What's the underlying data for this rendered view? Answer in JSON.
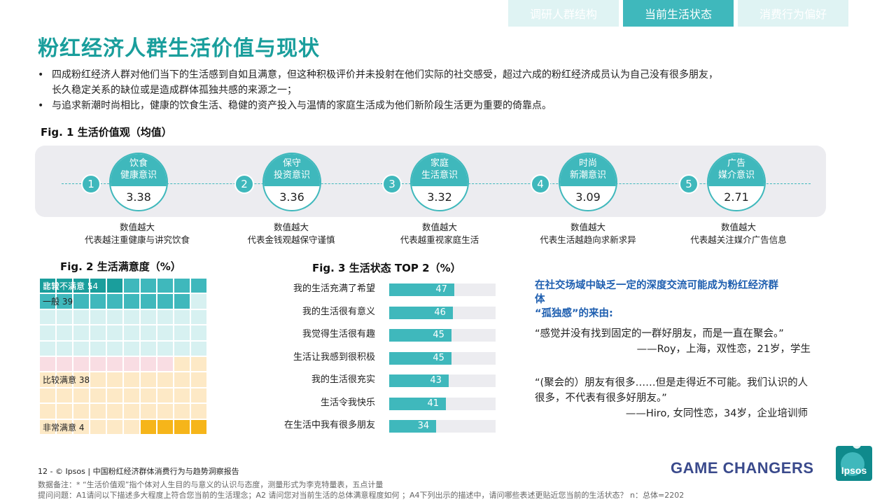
{
  "tabs": [
    {
      "label": "调研人群结构",
      "active": false
    },
    {
      "label": "当前生活状态",
      "active": true
    },
    {
      "label": "消费行为偏好",
      "active": false
    }
  ],
  "page_title": "粉红经济人群生活价值与现状",
  "bullets": [
    {
      "lines": [
        "四成粉红经济人群对他们当下的生活感到自如且满意，但这种积极评价并未投射在他们实际的社交感受，超过六成的粉红经济成员认为自己没有很多朋友，",
        "长久稳定关系的缺位或是造成群体孤独共感的来源之一；"
      ]
    },
    {
      "lines": [
        "与追求新潮时尚相比，健康的饮食生活、稳健的资产投入与温情的家庭生活成为他们新阶段生活更为重要的倚靠点。"
      ]
    }
  ],
  "fig1": {
    "title": "Fig. 1 生活价值观（均值）",
    "items": [
      {
        "rank": "1",
        "line1": "饮食",
        "line2": "健康意识",
        "value": "3.38",
        "cap1": "数值越大",
        "cap2": "代表越注重健康与讲究饮食"
      },
      {
        "rank": "2",
        "line1": "保守",
        "line2": "投资意识",
        "value": "3.36",
        "cap1": "数值越大",
        "cap2": "代表金钱观越保守谨慎"
      },
      {
        "rank": "3",
        "line1": "家庭",
        "line2": "生活意识",
        "value": "3.32",
        "cap1": "数值越大",
        "cap2": "代表越重视家庭生活"
      },
      {
        "rank": "4",
        "line1": "时尚",
        "line2": "新潮意识",
        "value": "3.09",
        "cap1": "数值越大",
        "cap2": "代表生活越趋向求新求异"
      },
      {
        "rank": "5",
        "line1": "广告",
        "line2": "媒介意识",
        "value": "2.71",
        "cap1": "数值越大",
        "cap2": "代表越关注媒介广告信息"
      }
    ]
  },
  "fig2": {
    "title": "Fig. 2 生活满意度（%）",
    "bands": [
      {
        "label": "非常不满意 5",
        "value": 5,
        "color": "#1a9e9c",
        "light_label": true
      },
      {
        "label": "比较不满意 14",
        "value": 14,
        "color": "#3fb8bc",
        "light_label": true
      },
      {
        "label": "一般 39",
        "value": 39,
        "color": "#d7f1f1",
        "light_label": false
      },
      {
        "label": "比较满意 38",
        "value": 38,
        "color": "#fde9c6",
        "light_label": false
      },
      {
        "label": "非常满意 4",
        "value": 4,
        "color": "#f6b51a",
        "light_label": false
      }
    ],
    "accent_pink": "#f9dde3"
  },
  "chart_data": {
    "type": "bar",
    "title": "Fig. 3  生活状态 TOP 2（%）",
    "categories": [
      "我的生活充满了希望",
      "我的生活很有意义",
      "我觉得生活很有趣",
      "生活让我感到很积极",
      "我的生活很充实",
      "生活令我快乐",
      "在生活中我有很多朋友"
    ],
    "values": [
      47,
      46,
      45,
      45,
      43,
      41,
      34
    ],
    "ylim": [
      0,
      100
    ],
    "color": "#3fb8bc"
  },
  "quotes_block": {
    "heading_lines": [
      "在社交场域中缺乏一定的深度交流可能成为粉红经济群",
      "体",
      "“孤独感”的来由:"
    ],
    "quotes": [
      {
        "text": "“感觉并没有找到固定的一群好朋友，而是一直在聚会。”",
        "who": "——Roy，上海，双性恋，21岁，学生"
      },
      {
        "text": "“(聚会的）朋友有很多……但是走得近不可能。我们认识的人很多，不代表有很多好朋友。”",
        "who": "——Hiro, 女同性恋，34岁，企业培训师"
      }
    ]
  },
  "footer": {
    "page_line": "12  -  © Ipsos  |   中国粉红经济群体消费行为与趋势洞察报告",
    "note1": "数据备注：* “生活价值观”指个体对人生目的与意义的认识与态度，测量形式为李克特量表，五点计量",
    "note2": "提问问题：A1请问以下描述多大程度上符合您当前的生活理念；A2 请问您对当前生活的总体满意程度如何 ；A4下列出示的描述中，请问哪些表述更贴近您当前的生活状态？  n：总体=2202",
    "tagline": "GAME CHANGERS",
    "logo_text": "Ipsos"
  },
  "colors": {
    "teal": "#3fb8bc",
    "title_teal": "#1a9e9c",
    "quote_blue": "#1f5fb0",
    "brand_navy": "#3a4a8c"
  }
}
